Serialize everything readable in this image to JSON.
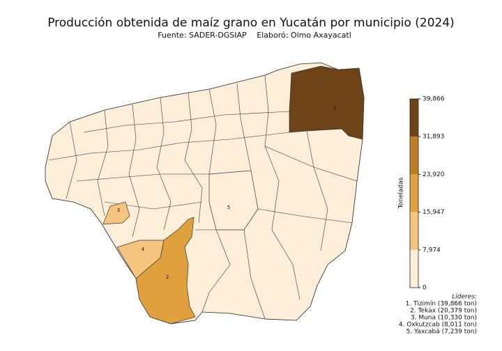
{
  "map": {
    "title": "Producción obtenida de maíz grano en Yucatán por municipio (2024)",
    "source": "Fuente: SADER-DGSIAP",
    "author": "Elaboró: Olmo Axayacatl",
    "colorbar": {
      "label": "Toneladas",
      "lim": [
        0,
        39866
      ],
      "ticks": [
        0,
        {
          "value": 7974,
          "label": "7,974"
        },
        {
          "value": 15947,
          "label": "15,947"
        },
        {
          "value": 23920,
          "label": "23,920"
        },
        {
          "value": 31893,
          "label": "31,893"
        },
        {
          "value": 39866,
          "label": "39,866"
        }
      ],
      "colors": [
        "#fdeed9",
        "#f5c47e",
        "#e0a03e",
        "#bf7f24",
        "#6e4317"
      ]
    },
    "regions": [
      {
        "label": "1",
        "value": 39866
      },
      {
        "label": "2",
        "value": 20379
      },
      {
        "label": "3",
        "value": 10330
      },
      {
        "label": "4",
        "value": 8011
      },
      {
        "label": "5",
        "value": 7239
      }
    ],
    "leaders": {
      "title": "Líderes:",
      "items": [
        "1. Tizimín (39,866 ton)",
        "2. Tekax (20,379 ton)",
        "3. Muna (10,330 ton)",
        "4. Oxkutzcab (8,011 ton)",
        "5. Yaxcabá (7,239 ton)"
      ]
    }
  }
}
